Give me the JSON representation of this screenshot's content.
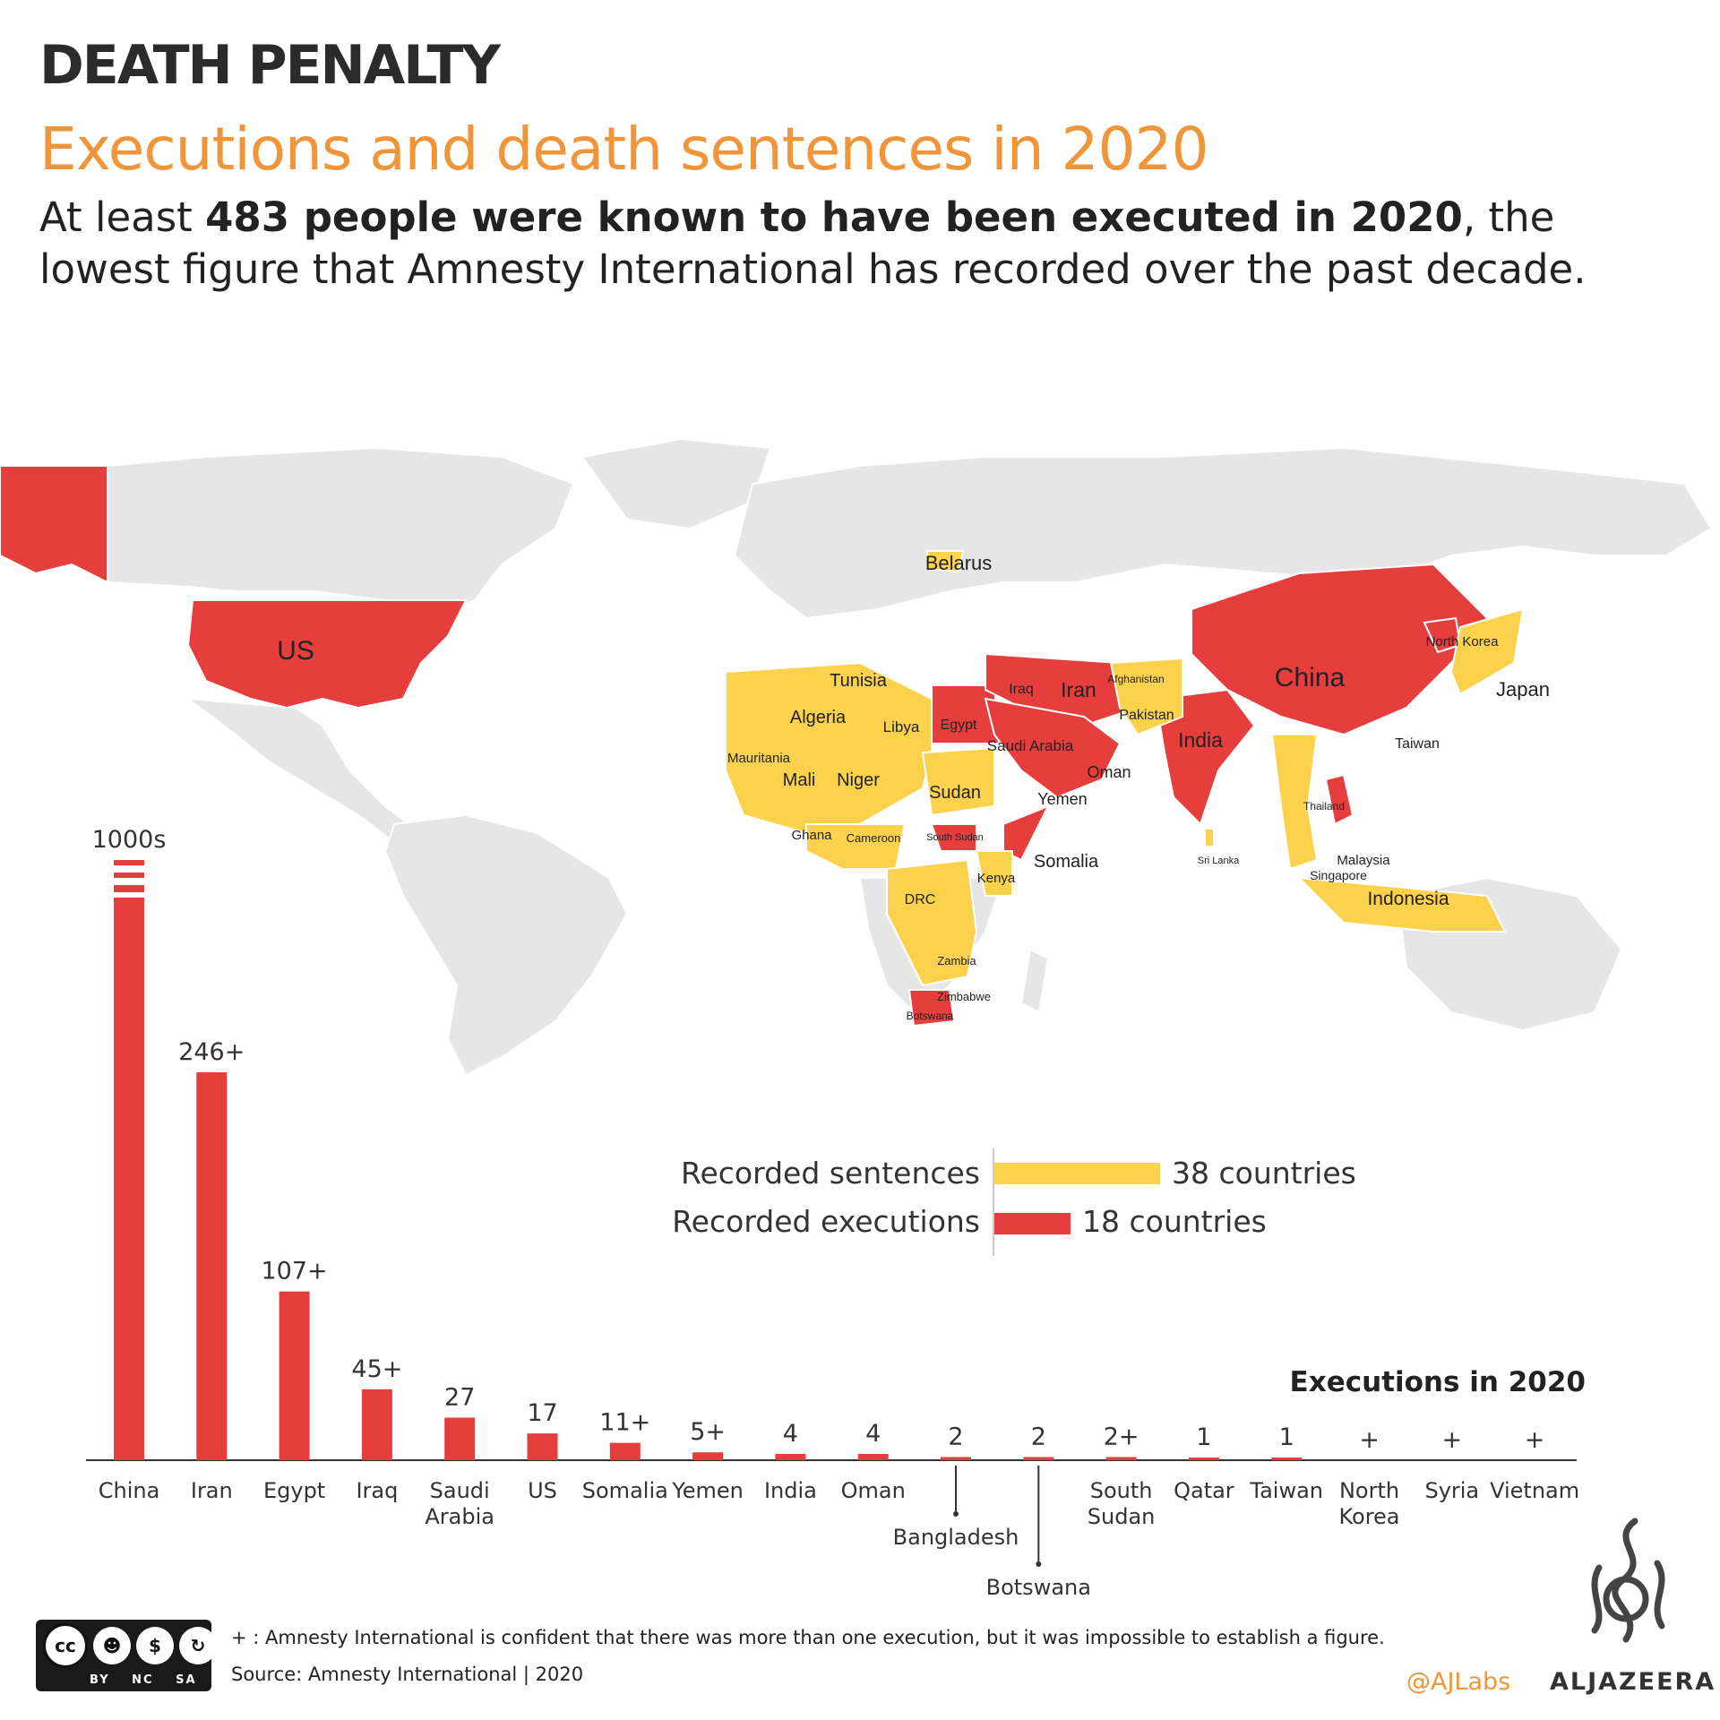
{
  "header": {
    "kicker": "DEATH PENALTY",
    "title": "Executions and death sentences in 2020",
    "subtitle_pre": "At least ",
    "subtitle_bold": "483 people were known to have been executed in 2020",
    "subtitle_post": ", the lowest figure that Amnesty International has recorded over the past decade."
  },
  "colors": {
    "execution": "#e63d3d",
    "sentence": "#fcd24c",
    "land": "#e6e6e6",
    "title_accent": "#f0953a"
  },
  "map": {
    "labels": [
      "US",
      "Belarus",
      "China",
      "North Korea",
      "Japan",
      "Taiwan",
      "Tunisia",
      "Algeria",
      "Libya",
      "Egypt",
      "Mauritania",
      "Mali",
      "Niger",
      "Sudan",
      "Ghana",
      "Cameroon",
      "South Sudan",
      "DRC",
      "Kenya",
      "Somalia",
      "Zambia",
      "Zimbabwe",
      "Botswana",
      "Iraq",
      "Iran",
      "Afghanistan",
      "Pakistan",
      "Saudi Arabia",
      "Oman",
      "Yemen",
      "India",
      "Sri Lanka",
      "Thailand",
      "Malaysia",
      "Singapore",
      "Indonesia"
    ]
  },
  "legend": {
    "sentences_label": "Recorded sentences",
    "sentences_count": "38 countries",
    "executions_label": "Recorded executions",
    "executions_count": "18 countries"
  },
  "chart_data": {
    "type": "bar",
    "title": "Executions in 2020",
    "categories": [
      "China",
      "Iran",
      "Egypt",
      "Iraq",
      "Saudi Arabia",
      "US",
      "Somalia",
      "Yemen",
      "India",
      "Oman",
      "Bangladesh",
      "Botswana",
      "South Sudan",
      "Qatar",
      "Taiwan",
      "North Korea",
      "Syria",
      "Vietnam"
    ],
    "values": [
      1000,
      246,
      107,
      45,
      27,
      17,
      11,
      5,
      4,
      4,
      2,
      2,
      2,
      1,
      1,
      null,
      null,
      null
    ],
    "value_labels": [
      "1000s",
      "246+",
      "107+",
      "45+",
      "27",
      "17",
      "11+",
      "5+",
      "4",
      "4",
      "2",
      "2",
      "2+",
      "1",
      "1",
      "+",
      "+",
      "+"
    ],
    "axis_break_on": "China",
    "series_color": "#e63d3d"
  },
  "footer": {
    "footnote": "+ : Amnesty International is confident that there was more than one execution, but it was impossible to establish a figure.",
    "source": "Source: Amnesty International | 2020",
    "handle": "@AJLabs",
    "brand": "ALJAZEERA",
    "license_tags": "BY NC SA",
    "license_cc": "cc"
  }
}
